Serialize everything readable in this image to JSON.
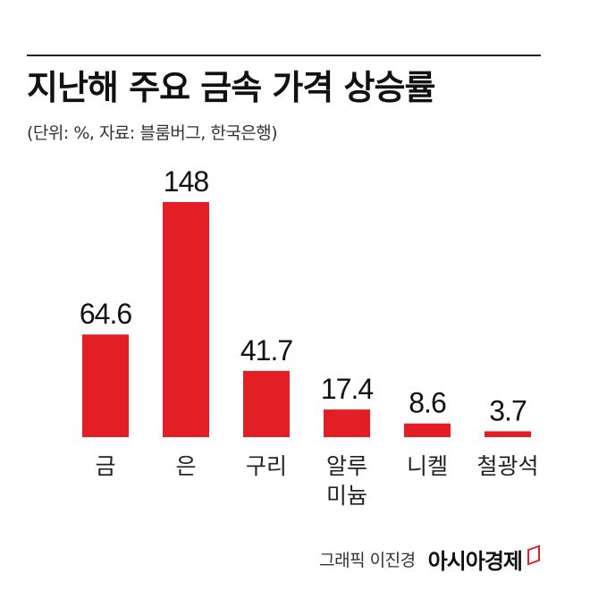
{
  "title": "지난해 주요 금속 가격 상승률",
  "subtitle": "(단위: %, 자료: 블룸버그, 한국은행)",
  "chart_data": {
    "type": "bar",
    "categories": [
      "금",
      "은",
      "구리",
      "알루\n미늄",
      "니켈",
      "철광석"
    ],
    "values": [
      64.6,
      148,
      41.7,
      17.4,
      8.6,
      3.7
    ],
    "value_labels": [
      "64.6",
      "148",
      "41.7",
      "17.4",
      "8.6",
      "3.7"
    ],
    "ylim": [
      0,
      148
    ],
    "bar_color": "#e31e24",
    "grid": false,
    "legend": "none"
  },
  "footer": {
    "credit": "그래픽 이진경",
    "brand": "아시아경제"
  },
  "colors": {
    "accent": "#e31e24",
    "text": "#1a1a1a"
  }
}
